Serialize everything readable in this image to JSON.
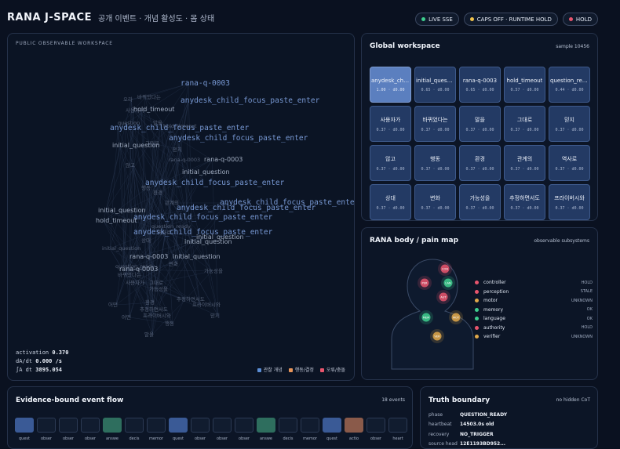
{
  "header": {
    "title": "RANA J-SPACE",
    "subtitle": "공개 이벤트 · 개념 활성도 · 몸 상태",
    "pills": [
      {
        "label": "LIVE SSE",
        "color": "#3ecf8e"
      },
      {
        "label": "CAPS OFF · RUNTIME HOLD",
        "color": "#f0c24b"
      },
      {
        "label": "HOLD",
        "color": "#e8556d"
      }
    ]
  },
  "workspace": {
    "header": "PUBLIC OBSERVABLE WORKSPACE",
    "metrics": {
      "activation_label": "activation",
      "activation_value": "0.370",
      "dadt_label": "dA/dt",
      "dadt_value": "0.000 /s",
      "integral_label": "∫A dt",
      "integral_value": "3895.054"
    },
    "legend": [
      {
        "label": "관찰 개념",
        "color": "#5b8ed6"
      },
      {
        "label": "행동/결정",
        "color": "#e8955a"
      },
      {
        "label": "오류/충돌",
        "color": "#e8556d"
      }
    ],
    "graph_labels": [
      {
        "text": "rana-q-0003",
        "size": "l",
        "tone": "bright"
      },
      {
        "text": "anydesk_child_focus_paste_enter",
        "size": "l",
        "tone": "bright"
      },
      {
        "text": "hold_timeout",
        "size": "m",
        "tone": "mid"
      },
      {
        "text": "anydesk_child_focus_paste_enter",
        "size": "l",
        "tone": "bright"
      },
      {
        "text": "anydesk_child_focus_paste_enter",
        "size": "l",
        "tone": "bright"
      },
      {
        "text": "initial_question",
        "size": "m",
        "tone": "mid"
      },
      {
        "text": "rana-q-0003",
        "size": "m",
        "tone": "mid"
      },
      {
        "text": "initial_question",
        "size": "m",
        "tone": "mid"
      },
      {
        "text": "anydesk_child_focus_paste_enter",
        "size": "l",
        "tone": "bright"
      },
      {
        "text": "anydesk_child_focus_paste_enter",
        "size": "l",
        "tone": "bright"
      },
      {
        "text": "anydesk_child_focus_paste_enter",
        "size": "l",
        "tone": "bright"
      },
      {
        "text": "initial_question",
        "size": "m",
        "tone": "mid"
      },
      {
        "text": "anydesk_child_focus_paste_enter",
        "size": "l",
        "tone": "bright"
      },
      {
        "text": "hold_timeout",
        "size": "m",
        "tone": "mid"
      },
      {
        "text": "anydesk_child_focus_paste_enter",
        "size": "l",
        "tone": "bright"
      },
      {
        "text": "initial_question",
        "size": "m",
        "tone": "mid"
      },
      {
        "text": "rana-q-0003",
        "size": "m",
        "tone": "mid"
      },
      {
        "text": "initial_question",
        "size": "m",
        "tone": "mid"
      },
      {
        "text": "question_ready",
        "size": "s",
        "tone": "dim"
      },
      {
        "text": "rana-q-0003",
        "size": "m",
        "tone": "mid"
      },
      {
        "text": "initial_question",
        "size": "m",
        "tone": "mid"
      },
      {
        "text": "사용자가",
        "size": "s",
        "tone": "dim"
      },
      {
        "text": "바뀌었다는",
        "size": "s",
        "tone": "dim"
      },
      {
        "text": "말을",
        "size": "s",
        "tone": "dim"
      },
      {
        "text": "그대로",
        "size": "s",
        "tone": "dim"
      },
      {
        "text": "믿지",
        "size": "s",
        "tone": "dim"
      },
      {
        "text": "않고",
        "size": "s",
        "tone": "dim"
      },
      {
        "text": "행동",
        "size": "s",
        "tone": "dim"
      },
      {
        "text": "환경",
        "size": "s",
        "tone": "dim"
      },
      {
        "text": "관계의",
        "size": "s",
        "tone": "dim"
      },
      {
        "text": "역사로",
        "size": "s",
        "tone": "dim"
      },
      {
        "text": "상대",
        "size": "s",
        "tone": "dim"
      },
      {
        "text": "변화",
        "size": "s",
        "tone": "dim"
      },
      {
        "text": "가능성을",
        "size": "s",
        "tone": "dim"
      },
      {
        "text": "추정하면서도",
        "size": "s",
        "tone": "dim"
      },
      {
        "text": "프라이버시와",
        "size": "s",
        "tone": "dim"
      },
      {
        "text": "어떤",
        "size": "s",
        "tone": "dim"
      },
      {
        "text": "오라",
        "size": "s",
        "tone": "dim"
      },
      {
        "text": "question",
        "size": "s",
        "tone": "dim"
      },
      {
        "text": "hold_timeout",
        "size": "s",
        "tone": "dim"
      },
      {
        "text": "rana-q-0003",
        "size": "s",
        "tone": "dim"
      },
      {
        "text": "question_ready",
        "size": "s",
        "tone": "dim"
      },
      {
        "text": "initial_question",
        "size": "s",
        "tone": "dim"
      },
      {
        "text": "바뀌었다는",
        "size": "s",
        "tone": "dim"
      },
      {
        "text": "사용자가",
        "size": "s",
        "tone": "dim"
      },
      {
        "text": "추정하면서도",
        "size": "s",
        "tone": "dim"
      },
      {
        "text": "프라이버시와",
        "size": "s",
        "tone": "dim"
      },
      {
        "text": "환경",
        "size": "s",
        "tone": "dim"
      },
      {
        "text": "행동",
        "size": "s",
        "tone": "dim"
      },
      {
        "text": "말을",
        "size": "s",
        "tone": "dim"
      },
      {
        "text": "어떤",
        "size": "s",
        "tone": "dim"
      },
      {
        "text": "그대로",
        "size": "s",
        "tone": "dim"
      },
      {
        "text": "가능성을",
        "size": "s",
        "tone": "dim"
      },
      {
        "text": "믿지",
        "size": "s",
        "tone": "dim"
      }
    ]
  },
  "global": {
    "title": "Global workspace",
    "sample": "sample 10456",
    "cells": [
      {
        "label": "anydesk_chil…",
        "value": "1.00 · d0.00",
        "active": true
      },
      {
        "label": "initial_question",
        "value": "0.65 · d0.00",
        "active": false
      },
      {
        "label": "rana-q-0003",
        "value": "0.65 · d0.00",
        "active": false
      },
      {
        "label": "hold_timeout",
        "value": "0.57 · d0.00",
        "active": false
      },
      {
        "label": "question_ready",
        "value": "0.44 · d0.00",
        "active": false
      },
      {
        "label": "사용자가",
        "value": "0.37 · d0.00",
        "active": false
      },
      {
        "label": "바뀌었다는",
        "value": "0.37 · d0.00",
        "active": false
      },
      {
        "label": "말을",
        "value": "0.37 · d0.00",
        "active": false
      },
      {
        "label": "그대로",
        "value": "0.37 · d0.00",
        "active": false
      },
      {
        "label": "믿지",
        "value": "0.37 · d0.00",
        "active": false
      },
      {
        "label": "않고",
        "value": "0.37 · d0.00",
        "active": false
      },
      {
        "label": "행동",
        "value": "0.37 · d0.00",
        "active": false
      },
      {
        "label": "환경",
        "value": "0.37 · d0.00",
        "active": false
      },
      {
        "label": "관계의",
        "value": "0.37 · d0.00",
        "active": false
      },
      {
        "label": "역사로",
        "value": "0.37 · d0.00",
        "active": false
      },
      {
        "label": "상대",
        "value": "0.37 · d0.00",
        "active": false
      },
      {
        "label": "변화",
        "value": "0.37 · d0.00",
        "active": false
      },
      {
        "label": "가능성을",
        "value": "0.37 · d0.00",
        "active": false
      },
      {
        "label": "추정하면서도",
        "value": "0.37 · d0.00",
        "active": false
      },
      {
        "label": "프라이버시와",
        "value": "0.37 · d0.00",
        "active": false
      }
    ]
  },
  "bodymap": {
    "title": "RANA body / pain map",
    "meta": "observable subsystems",
    "nodes": [
      {
        "label": "CON",
        "color": "#e8556d"
      },
      {
        "label": "PER",
        "color": "#e8556d"
      },
      {
        "label": "LAN",
        "color": "#3ecf8e"
      },
      {
        "label": "AUT",
        "color": "#e8556d"
      },
      {
        "label": "MEM",
        "color": "#3ecf8e"
      },
      {
        "label": "MOT",
        "color": "#e0a84a"
      },
      {
        "label": "VER",
        "color": "#e0a84a"
      }
    ],
    "subsystems": [
      {
        "name": "controller",
        "status": "HOLD",
        "color": "#e8556d"
      },
      {
        "name": "perception",
        "status": "STALE",
        "color": "#e8556d"
      },
      {
        "name": "motor",
        "status": "UNKNOWN",
        "color": "#e0a84a"
      },
      {
        "name": "memory",
        "status": "OK",
        "color": "#3ecf8e"
      },
      {
        "name": "language",
        "status": "OK",
        "color": "#3ecf8e"
      },
      {
        "name": "authority",
        "status": "HOLD",
        "color": "#e8556d"
      },
      {
        "name": "verifier",
        "status": "UNKNOWN",
        "color": "#e0a84a"
      }
    ]
  },
  "events": {
    "title": "Evidence-bound event flow",
    "count": "18 events",
    "items": [
      {
        "label": "quest",
        "color": "#3a5a96"
      },
      {
        "label": "obser",
        "color": ""
      },
      {
        "label": "obser",
        "color": ""
      },
      {
        "label": "obser",
        "color": ""
      },
      {
        "label": "answe",
        "color": "#2e6e5e"
      },
      {
        "label": "decis",
        "color": ""
      },
      {
        "label": "memor",
        "color": ""
      },
      {
        "label": "quest",
        "color": "#3a5a96"
      },
      {
        "label": "obser",
        "color": ""
      },
      {
        "label": "obser",
        "color": ""
      },
      {
        "label": "obser",
        "color": ""
      },
      {
        "label": "answe",
        "color": "#2e6e5e"
      },
      {
        "label": "decis",
        "color": ""
      },
      {
        "label": "memor",
        "color": ""
      },
      {
        "label": "quest",
        "color": "#3a5a96"
      },
      {
        "label": "actio",
        "color": "#8a5a4a"
      },
      {
        "label": "obser",
        "color": ""
      },
      {
        "label": "heart",
        "color": ""
      }
    ]
  },
  "truth": {
    "title": "Truth boundary",
    "meta": "no hidden CoT",
    "rows": [
      {
        "key": "phase",
        "value": "QUESTION_READY"
      },
      {
        "key": "heartbeat",
        "value": "14503.0s old"
      },
      {
        "key": "recovery",
        "value": "NO_TRIGGER"
      },
      {
        "key": "source head",
        "value": "12E1193BD952..."
      }
    ]
  }
}
